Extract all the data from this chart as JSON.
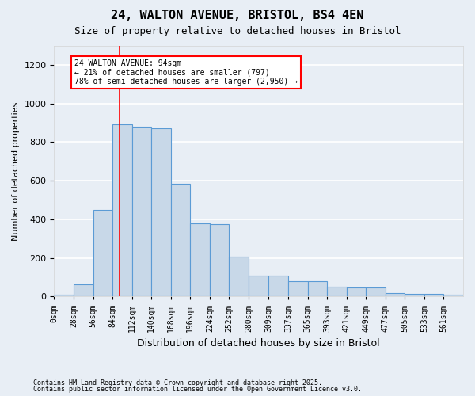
{
  "title1": "24, WALTON AVENUE, BRISTOL, BS4 4EN",
  "title2": "Size of property relative to detached houses in Bristol",
  "xlabel": "Distribution of detached houses by size in Bristol",
  "ylabel": "Number of detached properties",
  "bar_values": [
    10,
    65,
    450,
    890,
    880,
    870,
    585,
    380,
    375,
    205,
    110,
    110,
    80,
    80,
    50,
    45,
    45,
    20,
    15,
    12,
    8
  ],
  "bin_edges": [
    0,
    28,
    56,
    84,
    112,
    140,
    168,
    196,
    224,
    252,
    280,
    309,
    337,
    365,
    393,
    421,
    449,
    477,
    505,
    533,
    561,
    589
  ],
  "bin_labels": [
    "0sqm",
    "28sqm",
    "56sqm",
    "84sqm",
    "112sqm",
    "140sqm",
    "168sqm",
    "196sqm",
    "224sqm",
    "252sqm",
    "280sqm",
    "309sqm",
    "337sqm",
    "365sqm",
    "393sqm",
    "421sqm",
    "449sqm",
    "477sqm",
    "505sqm",
    "533sqm",
    "561sqm"
  ],
  "bar_color": "#c8d8e8",
  "bar_edge_color": "#5b9bd5",
  "bg_color": "#e8eef5",
  "grid_color": "white",
  "red_line_x": 94,
  "annotation_title": "24 WALTON AVENUE: 94sqm",
  "annotation_line2": "← 21% of detached houses are smaller (797)",
  "annotation_line3": "78% of semi-detached houses are larger (2,950) →",
  "annotation_box_color": "white",
  "annotation_border_color": "red",
  "ylim": [
    0,
    1300
  ],
  "yticks": [
    0,
    200,
    400,
    600,
    800,
    1000,
    1200
  ],
  "footer1": "Contains HM Land Registry data © Crown copyright and database right 2025.",
  "footer2": "Contains public sector information licensed under the Open Government Licence v3.0."
}
